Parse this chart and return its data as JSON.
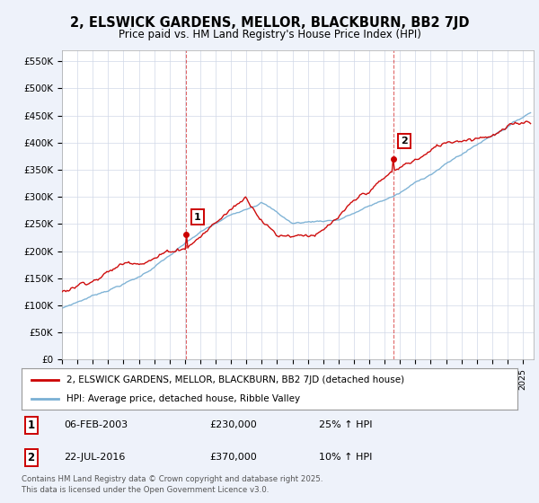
{
  "title": "2, ELSWICK GARDENS, MELLOR, BLACKBURN, BB2 7JD",
  "subtitle": "Price paid vs. HM Land Registry's House Price Index (HPI)",
  "ylabel_ticks": [
    "£0",
    "£50K",
    "£100K",
    "£150K",
    "£200K",
    "£250K",
    "£300K",
    "£350K",
    "£400K",
    "£450K",
    "£500K",
    "£550K"
  ],
  "ytick_values": [
    0,
    50000,
    100000,
    150000,
    200000,
    250000,
    300000,
    350000,
    400000,
    450000,
    500000,
    550000
  ],
  "ylim": [
    0,
    570000
  ],
  "xlim_start": 1995.0,
  "xlim_end": 2025.7,
  "sale1_date": 2003.09,
  "sale1_price": 230000,
  "sale2_date": 2016.55,
  "sale2_price": 370000,
  "legend_label_red": "2, ELSWICK GARDENS, MELLOR, BLACKBURN, BB2 7JD (detached house)",
  "legend_label_blue": "HPI: Average price, detached house, Ribble Valley",
  "red_color": "#cc0000",
  "blue_color": "#7ab0d4",
  "vline_color": "#cc0000",
  "background_color": "#eef2fa",
  "plot_bg_color": "#ffffff",
  "footer": "Contains HM Land Registry data © Crown copyright and database right 2025.\nThis data is licensed under the Open Government Licence v3.0."
}
